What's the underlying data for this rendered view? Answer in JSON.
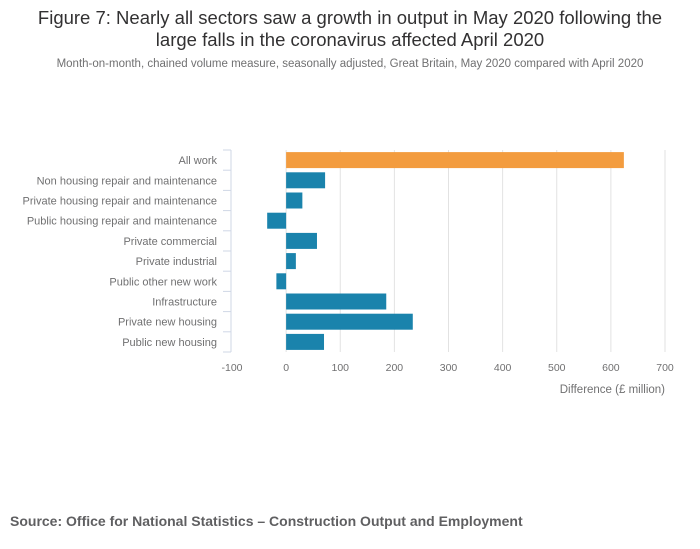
{
  "chart_data": {
    "type": "bar",
    "orientation": "horizontal",
    "title": "Figure 7: Nearly all sectors saw a growth in output in May 2020 following the large falls in the coronavirus affected April 2020",
    "subtitle": "Month-on-month, chained volume measure, seasonally adjusted, Great Britain, May 2020 compared with April 2020",
    "categories": [
      "All work",
      "Non housing repair and maintenance",
      "Private housing repair and maintenance",
      "Public housing repair and maintenance",
      "Private commercial",
      "Private industrial",
      "Public other new work",
      "Infrastructure",
      "Private new housing",
      "Public new housing"
    ],
    "values": [
      624,
      72,
      30,
      -35,
      57,
      18,
      -18,
      185,
      234,
      70
    ],
    "highlight_category": "All work",
    "xlabel": "Difference (£ million)",
    "ylabel": "",
    "xlim": [
      -100,
      700
    ],
    "xticks": [
      "-100",
      "0",
      "100",
      "200",
      "300",
      "400",
      "500",
      "600",
      "700"
    ],
    "xtick_values": [
      -100,
      0,
      100,
      200,
      300,
      400,
      500,
      600,
      700
    ],
    "grid": "vertical",
    "legend": "none",
    "colors": {
      "highlight": "#f39c3f",
      "default": "#1a83ac",
      "grid": "#e2e2e2",
      "axis": "#cfd7e6"
    },
    "source": "Source: Office for National Statistics – Construction Output and Employment"
  }
}
